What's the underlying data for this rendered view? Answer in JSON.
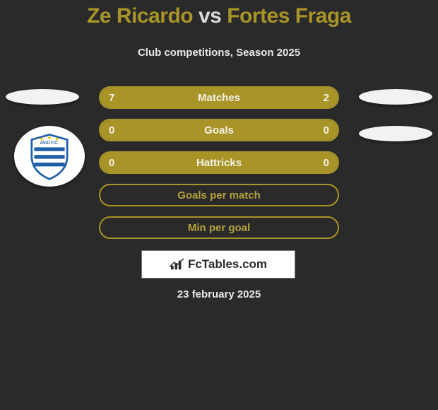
{
  "title": {
    "player1": "Ze Ricardo",
    "vs": "vs",
    "player2": "Fortes Fraga"
  },
  "subtitle": "Club competitions, Season 2025",
  "colors": {
    "accent": "#a89427",
    "background": "#2a2a2a",
    "text_light": "#e8e8e8",
    "bar_text": "#f4f2e6",
    "ellipse": "#f2f2f2",
    "logo_bg": "#ffffff"
  },
  "badge": {
    "name": "avai-fc",
    "primary": "#1e5fa8",
    "secondary": "#ffffff",
    "accent": "#f2c300"
  },
  "bars": [
    {
      "label": "Matches",
      "left_value": "7",
      "right_value": "2",
      "left_pct": 77.8,
      "right_pct": 22.2,
      "show_values": true
    },
    {
      "label": "Goals",
      "left_value": "0",
      "right_value": "0",
      "left_pct": 100,
      "right_pct": 0,
      "show_values": true
    },
    {
      "label": "Hattricks",
      "left_value": "0",
      "right_value": "0",
      "left_pct": 100,
      "right_pct": 0,
      "show_values": true
    },
    {
      "label": "Goals per match",
      "left_value": "",
      "right_value": "",
      "left_pct": 0,
      "right_pct": 0,
      "show_values": false
    },
    {
      "label": "Min per goal",
      "left_value": "",
      "right_value": "",
      "left_pct": 0,
      "right_pct": 0,
      "show_values": false
    }
  ],
  "logo_text": "FcTables.com",
  "date": "23 february 2025"
}
